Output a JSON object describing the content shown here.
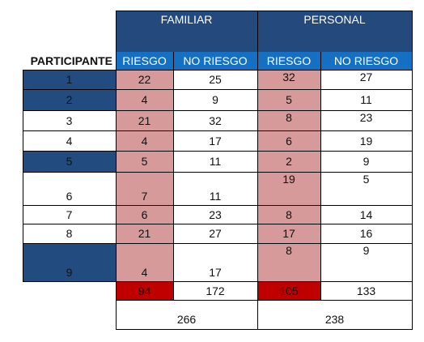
{
  "header": {
    "group_familiar": "FAMILIAR",
    "group_personal": "PERSONAL",
    "participant_label": "PARTICIPANTE",
    "riesgo": "RIESGO",
    "no_riesgo": "NO RIESGO"
  },
  "rows": [
    {
      "participant": "1",
      "fam_riesgo": "22",
      "fam_no": "25",
      "per_riesgo": "32",
      "per_no": "27"
    },
    {
      "participant": "2",
      "fam_riesgo": "4",
      "fam_no": "9",
      "per_riesgo": "5",
      "per_no": "11"
    },
    {
      "participant": "3",
      "fam_riesgo": "21",
      "fam_no": "32",
      "per_riesgo": "8",
      "per_no": "23"
    },
    {
      "participant": "4",
      "fam_riesgo": "4",
      "fam_no": "17",
      "per_riesgo": "6",
      "per_no": "19"
    },
    {
      "participant": "5",
      "fam_riesgo": "5",
      "fam_no": "11",
      "per_riesgo": "2",
      "per_no": "9"
    },
    {
      "participant": "6",
      "fam_riesgo": "7",
      "fam_no": "11",
      "per_riesgo": "19",
      "per_no": "5"
    },
    {
      "participant": "7",
      "fam_riesgo": "6",
      "fam_no": "23",
      "per_riesgo": "8",
      "per_no": "14"
    },
    {
      "participant": "8",
      "fam_riesgo": "21",
      "fam_no": "27",
      "per_riesgo": "17",
      "per_no": "16"
    },
    {
      "participant": "9",
      "fam_riesgo": "4",
      "fam_no": "17",
      "per_riesgo": "8",
      "per_no": "9"
    }
  ],
  "totals": {
    "fam_riesgo": "94",
    "fam_no": "172",
    "per_riesgo": "105",
    "per_no": "133"
  },
  "grand_totals": {
    "familiar": "266",
    "personal": "238"
  },
  "colors": {
    "header_dark": "#24497c",
    "subheader_blue": "#1570c4",
    "risk_pink": "#d79a9a",
    "total_red": "#c00000",
    "participant_highlight": "#224c80"
  }
}
